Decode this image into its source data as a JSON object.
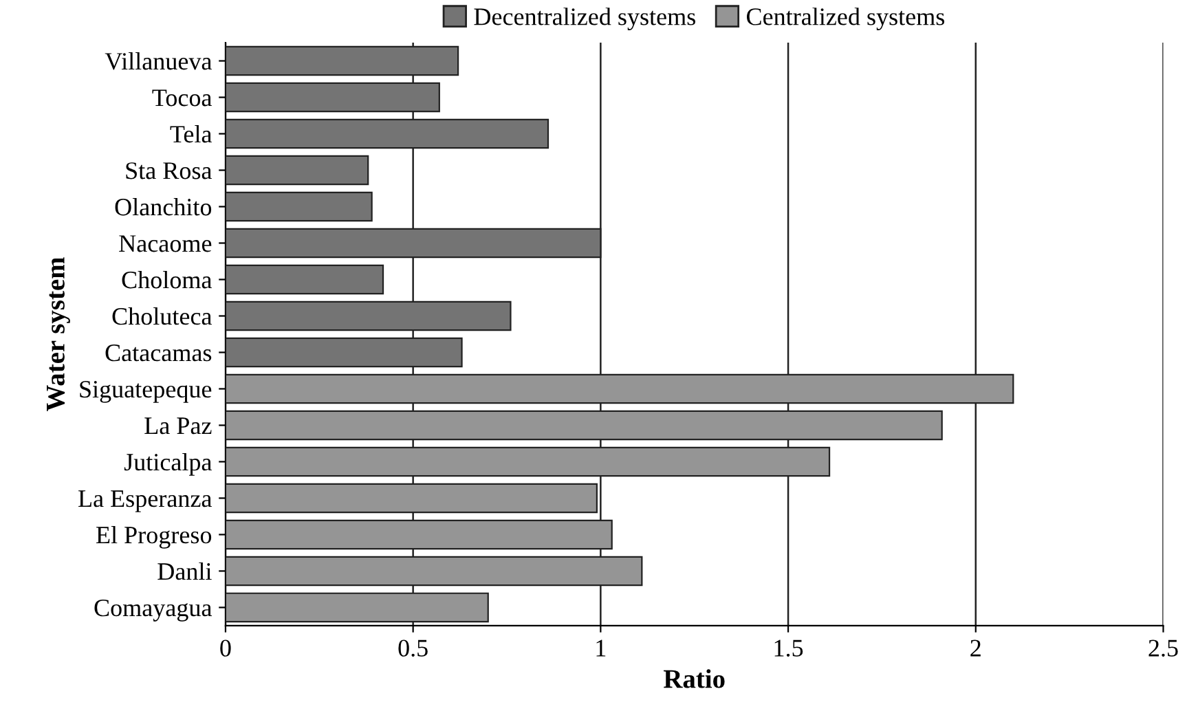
{
  "chart_data": {
    "type": "bar",
    "orientation": "horizontal",
    "xlabel": "Ratio",
    "ylabel": "Water system",
    "categories": [
      "Villanueva",
      "Tocoa",
      "Tela",
      "Sta Rosa",
      "Olanchito",
      "Nacaome",
      "Choloma",
      "Choluteca",
      "Catacamas",
      "Siguatepeque",
      "La Paz",
      "Juticalpa",
      "La Esperanza",
      "El Progreso",
      "Danli",
      "Comayagua"
    ],
    "series": [
      {
        "name": "Decentralized systems",
        "color": "#747474",
        "values": [
          0.62,
          0.57,
          0.86,
          0.38,
          0.39,
          1.0,
          0.42,
          0.76,
          0.63,
          null,
          null,
          null,
          null,
          null,
          null,
          null
        ]
      },
      {
        "name": "Centralized systems",
        "color": "#959595",
        "values": [
          null,
          null,
          null,
          null,
          null,
          null,
          null,
          null,
          null,
          2.1,
          1.91,
          1.61,
          0.99,
          1.03,
          1.11,
          0.7
        ]
      }
    ],
    "xlim": [
      0,
      2.5
    ],
    "xticks": [
      0,
      0.5,
      1,
      1.5,
      2,
      2.5
    ],
    "grid": "x",
    "legend": "top"
  }
}
